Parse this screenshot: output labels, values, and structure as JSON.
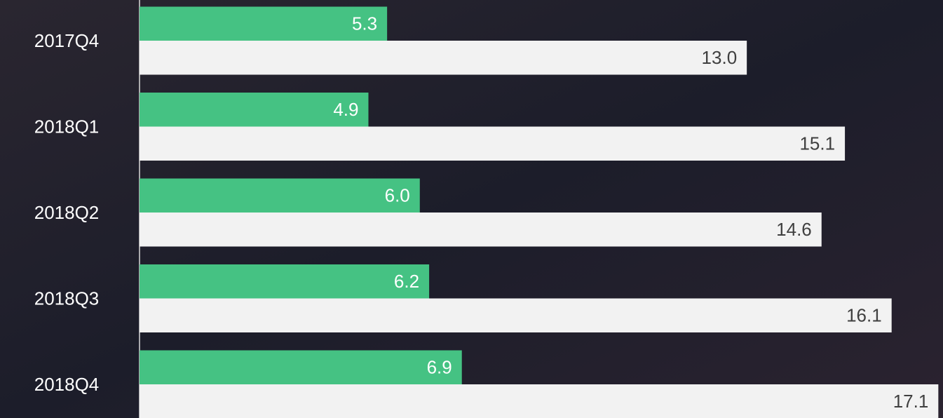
{
  "chart_data": {
    "type": "bar",
    "orientation": "horizontal",
    "categories": [
      "2017Q4",
      "2018Q1",
      "2018Q2",
      "2018Q3",
      "2018Q4"
    ],
    "series": [
      {
        "color": "#45c283",
        "values": [
          5.3,
          4.9,
          6.0,
          6.2,
          6.9
        ],
        "value_labels": [
          "5.3",
          "4.9",
          "6.0",
          "6.2",
          "6.9"
        ]
      },
      {
        "color": "#f2f2f2",
        "values": [
          13.0,
          15.1,
          14.6,
          16.1,
          17.1
        ],
        "value_labels": [
          "13.0",
          "15.1",
          "14.6",
          "16.1",
          "17.1"
        ]
      }
    ],
    "xlim": [
      0,
      17.2
    ]
  }
}
